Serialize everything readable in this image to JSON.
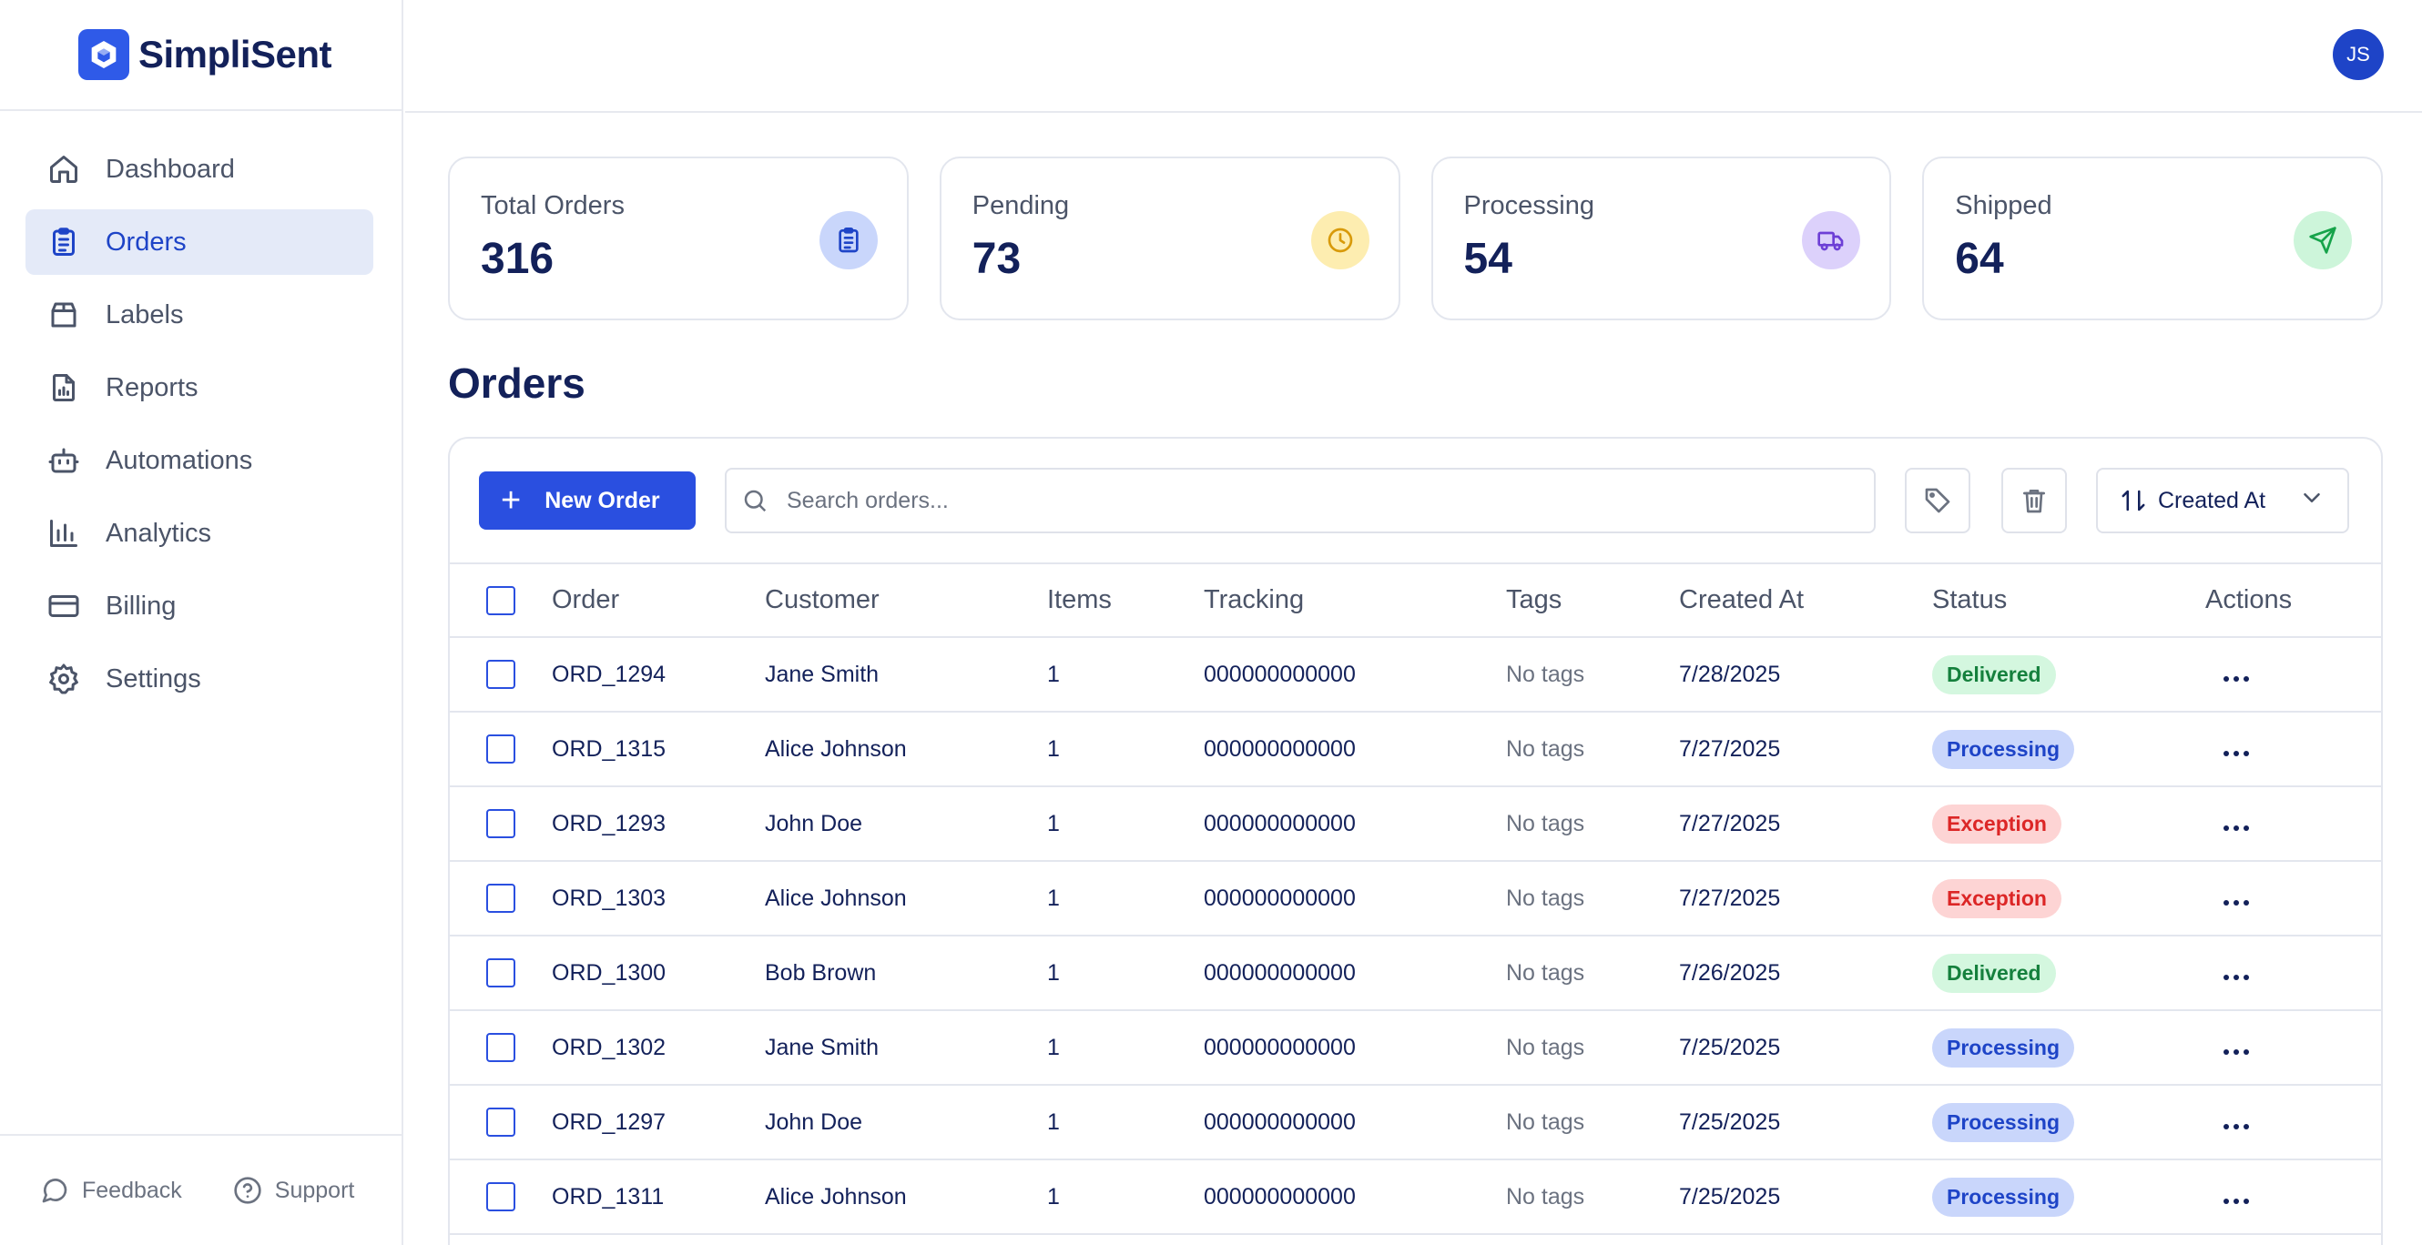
{
  "brand": {
    "name": "SimpliSent"
  },
  "user": {
    "initials": "JS"
  },
  "sidebar": {
    "items": [
      {
        "label": "Dashboard",
        "icon": "home-icon",
        "active": false
      },
      {
        "label": "Orders",
        "icon": "clipboard-icon",
        "active": true
      },
      {
        "label": "Labels",
        "icon": "package-icon",
        "active": false
      },
      {
        "label": "Reports",
        "icon": "report-icon",
        "active": false
      },
      {
        "label": "Automations",
        "icon": "bot-icon",
        "active": false
      },
      {
        "label": "Analytics",
        "icon": "bar-chart-icon",
        "active": false
      },
      {
        "label": "Billing",
        "icon": "credit-card-icon",
        "active": false
      },
      {
        "label": "Settings",
        "icon": "gear-icon",
        "active": false
      }
    ],
    "footer": {
      "feedback": "Feedback",
      "support": "Support"
    }
  },
  "stats": [
    {
      "label": "Total Orders",
      "value": "316",
      "icon": "clipboard-icon",
      "bg": "#c9d6fb",
      "fg": "#1e44c7"
    },
    {
      "label": "Pending",
      "value": "73",
      "icon": "clock-icon",
      "bg": "#fdedb0",
      "fg": "#d89a0a"
    },
    {
      "label": "Processing",
      "value": "54",
      "icon": "truck-icon",
      "bg": "#dcd1fb",
      "fg": "#6d3fd6"
    },
    {
      "label": "Shipped",
      "value": "64",
      "icon": "send-icon",
      "bg": "#cdf5da",
      "fg": "#16a34a"
    }
  ],
  "page": {
    "title": "Orders"
  },
  "toolbar": {
    "new_order": "New Order",
    "search_placeholder": "Search orders...",
    "sort_label": "Created At"
  },
  "table": {
    "columns": [
      "Order",
      "Customer",
      "Items",
      "Tracking",
      "Tags",
      "Created At",
      "Status",
      "Actions"
    ],
    "rows": [
      {
        "order": "ORD_1294",
        "customer": "Jane Smith",
        "items": "1",
        "tracking": "000000000000",
        "tags": "No tags",
        "created": "7/28/2025",
        "status": "Delivered"
      },
      {
        "order": "ORD_1315",
        "customer": "Alice Johnson",
        "items": "1",
        "tracking": "000000000000",
        "tags": "No tags",
        "created": "7/27/2025",
        "status": "Processing"
      },
      {
        "order": "ORD_1293",
        "customer": "John Doe",
        "items": "1",
        "tracking": "000000000000",
        "tags": "No tags",
        "created": "7/27/2025",
        "status": "Exception"
      },
      {
        "order": "ORD_1303",
        "customer": "Alice Johnson",
        "items": "1",
        "tracking": "000000000000",
        "tags": "No tags",
        "created": "7/27/2025",
        "status": "Exception"
      },
      {
        "order": "ORD_1300",
        "customer": "Bob Brown",
        "items": "1",
        "tracking": "000000000000",
        "tags": "No tags",
        "created": "7/26/2025",
        "status": "Delivered"
      },
      {
        "order": "ORD_1302",
        "customer": "Jane Smith",
        "items": "1",
        "tracking": "000000000000",
        "tags": "No tags",
        "created": "7/25/2025",
        "status": "Processing"
      },
      {
        "order": "ORD_1297",
        "customer": "John Doe",
        "items": "1",
        "tracking": "000000000000",
        "tags": "No tags",
        "created": "7/25/2025",
        "status": "Processing"
      },
      {
        "order": "ORD_1311",
        "customer": "Alice Johnson",
        "items": "1",
        "tracking": "000000000000",
        "tags": "No tags",
        "created": "7/25/2025",
        "status": "Processing"
      }
    ]
  }
}
